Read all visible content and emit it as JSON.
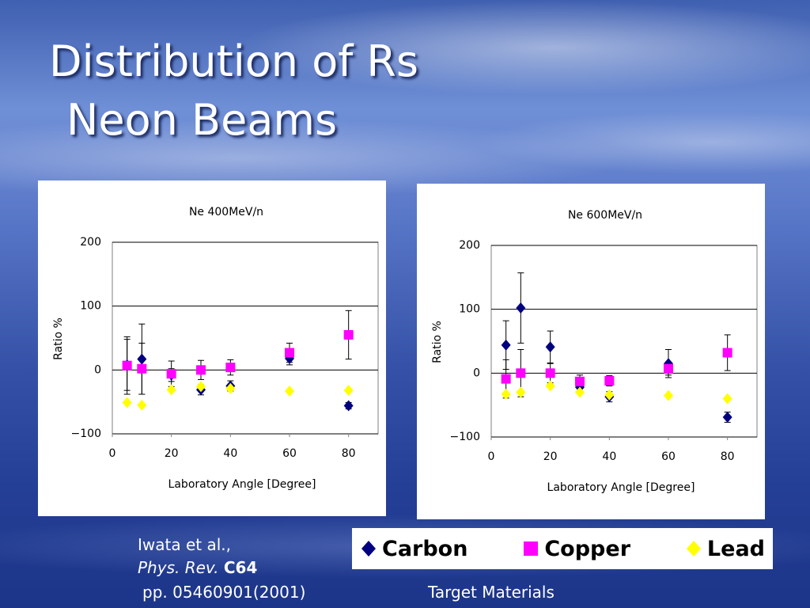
{
  "header": {
    "title_line1": "Distribution of Rs",
    "title_line2": "Neon Beams"
  },
  "citation": {
    "authors": "Iwata et al.,",
    "journal": "Phys. Rev.",
    "volume": "C64",
    "pages": "pp. 05460901(2001)"
  },
  "legend_caption": "Target Materials",
  "chart_data": [
    {
      "type": "scatter",
      "title": "Ne 400MeV/n",
      "x_label": "Laboratory Angle [Degree]",
      "y_label": "Ratio %",
      "x": [
        5,
        10,
        20,
        30,
        40,
        60,
        80
      ],
      "xlim": [
        0,
        90
      ],
      "xticks": [
        0,
        20,
        40,
        60,
        80
      ],
      "ylim": [
        -100,
        200
      ],
      "yticks": [
        {
          "value": -100,
          "label": "−100"
        },
        0,
        100,
        200
      ],
      "grid": true,
      "series": [
        {
          "name": "Carbon",
          "color": "#000080",
          "marker": "diamond",
          "values": [
            8,
            17,
            -8,
            -31,
            -25,
            18,
            -56
          ],
          "errors": [
            40,
            55,
            10,
            8,
            8,
            10,
            5
          ]
        },
        {
          "name": "Copper",
          "color": "#ff00ff",
          "marker": "square",
          "values": [
            7,
            2,
            -6,
            0,
            4,
            27,
            55
          ],
          "errors": [
            45,
            40,
            20,
            15,
            12,
            15,
            38
          ]
        },
        {
          "name": "Lead",
          "color": "#ffff00",
          "marker": "diamond",
          "values": [
            -51,
            -55,
            -31,
            -26,
            -29,
            -33,
            -32
          ]
        }
      ]
    },
    {
      "type": "scatter",
      "title": "Ne 600MeV/n",
      "x_label": "Laboratory Angle [Degree]",
      "y_label": "Ratio %",
      "x": [
        5,
        10,
        20,
        30,
        40,
        60,
        80
      ],
      "xlim": [
        0,
        90
      ],
      "xticks": [
        0,
        20,
        40,
        60,
        80
      ],
      "ylim": [
        -100,
        200
      ],
      "yticks": [
        {
          "value": -100,
          "label": "−100"
        },
        0,
        100,
        200
      ],
      "grid": true,
      "series": [
        {
          "color": "#000080",
          "marker": "diamond",
          "values": [
            44,
            102,
            41,
            -22,
            -37,
            15,
            -69
          ],
          "errors": [
            38,
            55,
            25,
            8,
            8,
            22,
            8
          ]
        },
        {
          "color": "#ff00ff",
          "marker": "square",
          "values": [
            -9,
            0,
            0,
            -13,
            -12,
            7,
            32
          ],
          "errors": [
            30,
            37,
            15,
            10,
            8,
            10,
            28
          ]
        },
        {
          "color": "#ffff00",
          "marker": "diamond",
          "values": [
            -33,
            -30,
            -20,
            -30,
            -34,
            -35,
            -40
          ]
        }
      ]
    }
  ]
}
